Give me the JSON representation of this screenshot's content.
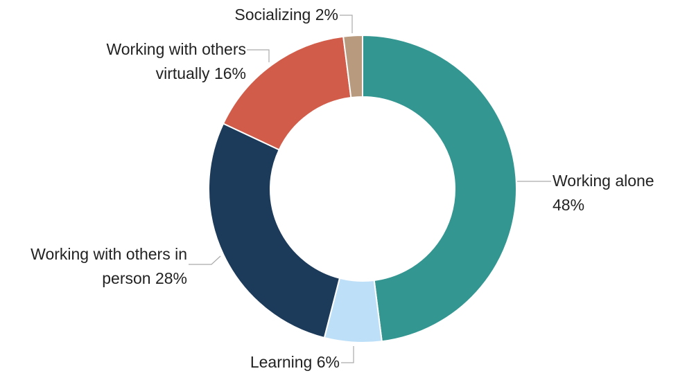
{
  "chart_data": {
    "type": "donut",
    "categories": [
      "Working alone",
      "Learning",
      "Working with others in person",
      "Working with others virtually",
      "Socializing"
    ],
    "values": [
      48,
      6,
      28,
      16,
      2
    ],
    "value_labels": [
      "48%",
      "6%",
      "28%",
      "16%",
      "2%"
    ],
    "colors": [
      "#339691",
      "#bde0f8",
      "#1c3a5a",
      "#d25c4a",
      "#b89a7e"
    ]
  }
}
